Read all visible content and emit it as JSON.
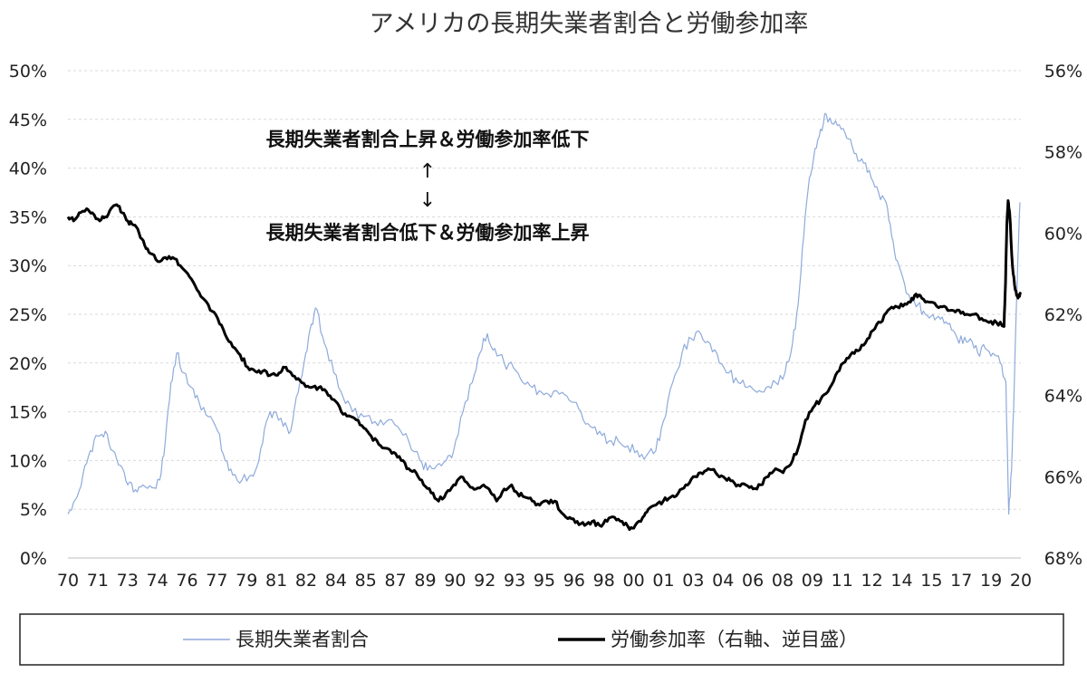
{
  "chart_data": {
    "type": "line",
    "title": "アメリカの長期失業者割合と労働参加率",
    "annotations": {
      "line1": "長期失業者割合上昇＆労働参加率低下",
      "arrow_up": "↑",
      "arrow_down": "↓",
      "line2": "長期失業者割合低下＆労働参加率上昇"
    },
    "x_tick_labels": [
      "70",
      "71",
      "73",
      "74",
      "76",
      "77",
      "79",
      "81",
      "82",
      "84",
      "85",
      "87",
      "89",
      "90",
      "92",
      "93",
      "95",
      "96",
      "98",
      "00",
      "01",
      "03",
      "04",
      "06",
      "08",
      "09",
      "11",
      "12",
      "14",
      "15",
      "17",
      "19",
      "20"
    ],
    "x_range": [
      1970,
      2020.9
    ],
    "left_axis": {
      "ticks": [
        "50%",
        "45%",
        "40%",
        "35%",
        "30%",
        "25%",
        "20%",
        "15%",
        "10%",
        "5%",
        "0%"
      ],
      "ylim": [
        0,
        50
      ]
    },
    "right_axis": {
      "ticks": [
        "56%",
        "58%",
        "60%",
        "62%",
        "64%",
        "66%",
        "68%"
      ],
      "ylim": [
        56,
        68
      ],
      "inverted": true
    },
    "grid": true,
    "legend_position": "bottom",
    "series": [
      {
        "name": "長期失業者割合",
        "axis": "left",
        "color": "#8eaadb",
        "points": [
          [
            1970.0,
            4.5
          ],
          [
            1970.4,
            6.0
          ],
          [
            1970.8,
            8.5
          ],
          [
            1971.2,
            11.0
          ],
          [
            1971.6,
            12.5
          ],
          [
            1972.0,
            13.0
          ],
          [
            1972.4,
            11.0
          ],
          [
            1972.8,
            9.5
          ],
          [
            1973.2,
            7.5
          ],
          [
            1973.6,
            7.0
          ],
          [
            1974.0,
            7.5
          ],
          [
            1974.5,
            7.2
          ],
          [
            1974.9,
            8.0
          ],
          [
            1975.2,
            12.0
          ],
          [
            1975.5,
            18.0
          ],
          [
            1975.8,
            21.0
          ],
          [
            1976.2,
            19.0
          ],
          [
            1976.6,
            17.5
          ],
          [
            1977.0,
            16.0
          ],
          [
            1977.5,
            14.5
          ],
          [
            1978.0,
            13.0
          ],
          [
            1978.4,
            10.0
          ],
          [
            1978.8,
            8.5
          ],
          [
            1979.3,
            8.0
          ],
          [
            1979.8,
            8.5
          ],
          [
            1980.2,
            10.0
          ],
          [
            1980.6,
            14.0
          ],
          [
            1981.0,
            15.0
          ],
          [
            1981.5,
            13.5
          ],
          [
            1981.9,
            13.0
          ],
          [
            1982.3,
            17.0
          ],
          [
            1982.7,
            21.0
          ],
          [
            1983.0,
            24.0
          ],
          [
            1983.3,
            25.5
          ],
          [
            1983.7,
            22.0
          ],
          [
            1984.2,
            19.0
          ],
          [
            1984.7,
            16.5
          ],
          [
            1985.2,
            15.0
          ],
          [
            1985.8,
            14.5
          ],
          [
            1986.4,
            14.0
          ],
          [
            1987.0,
            14.0
          ],
          [
            1987.6,
            13.5
          ],
          [
            1988.2,
            12.0
          ],
          [
            1988.8,
            10.0
          ],
          [
            1989.2,
            9.0
          ],
          [
            1989.7,
            9.5
          ],
          [
            1990.2,
            10.0
          ],
          [
            1990.6,
            11.0
          ],
          [
            1991.1,
            15.0
          ],
          [
            1991.6,
            18.0
          ],
          [
            1992.0,
            21.0
          ],
          [
            1992.4,
            23.0
          ],
          [
            1992.8,
            21.5
          ],
          [
            1993.3,
            20.0
          ],
          [
            1993.8,
            19.5
          ],
          [
            1994.3,
            18.0
          ],
          [
            1994.8,
            17.5
          ],
          [
            1995.3,
            17.0
          ],
          [
            1995.8,
            16.5
          ],
          [
            1996.4,
            17.0
          ],
          [
            1996.9,
            16.0
          ],
          [
            1997.4,
            15.0
          ],
          [
            1997.9,
            13.5
          ],
          [
            1998.4,
            13.0
          ],
          [
            1998.9,
            12.0
          ],
          [
            1999.4,
            12.0
          ],
          [
            1999.9,
            11.5
          ],
          [
            2000.4,
            11.0
          ],
          [
            2000.9,
            10.5
          ],
          [
            2001.4,
            11.0
          ],
          [
            2001.8,
            14.0
          ],
          [
            2002.3,
            18.0
          ],
          [
            2002.8,
            21.0
          ],
          [
            2003.3,
            22.5
          ],
          [
            2003.8,
            23.0
          ],
          [
            2004.3,
            22.0
          ],
          [
            2004.8,
            20.0
          ],
          [
            2005.3,
            19.0
          ],
          [
            2005.8,
            18.0
          ],
          [
            2006.3,
            17.5
          ],
          [
            2006.8,
            17.0
          ],
          [
            2007.3,
            17.5
          ],
          [
            2007.8,
            18.0
          ],
          [
            2008.3,
            19.0
          ],
          [
            2008.7,
            22.0
          ],
          [
            2009.0,
            26.0
          ],
          [
            2009.3,
            33.0
          ],
          [
            2009.6,
            39.0
          ],
          [
            2009.9,
            42.0
          ],
          [
            2010.2,
            44.0
          ],
          [
            2010.5,
            45.5
          ],
          [
            2010.9,
            44.5
          ],
          [
            2011.3,
            44.0
          ],
          [
            2011.7,
            43.0
          ],
          [
            2012.1,
            41.5
          ],
          [
            2012.5,
            40.5
          ],
          [
            2012.9,
            39.0
          ],
          [
            2013.3,
            37.5
          ],
          [
            2013.7,
            36.5
          ],
          [
            2014.0,
            33.0
          ],
          [
            2014.3,
            30.5
          ],
          [
            2014.7,
            28.0
          ],
          [
            2015.0,
            26.5
          ],
          [
            2015.4,
            26.0
          ],
          [
            2015.8,
            25.0
          ],
          [
            2016.2,
            25.0
          ],
          [
            2016.6,
            24.5
          ],
          [
            2017.0,
            24.0
          ],
          [
            2017.4,
            23.0
          ],
          [
            2017.8,
            22.0
          ],
          [
            2018.2,
            22.5
          ],
          [
            2018.6,
            21.0
          ],
          [
            2019.0,
            21.5
          ],
          [
            2019.4,
            21.0
          ],
          [
            2019.8,
            20.0
          ],
          [
            2020.1,
            18.0
          ],
          [
            2020.25,
            4.5
          ],
          [
            2020.4,
            9.0
          ],
          [
            2020.55,
            18.0
          ],
          [
            2020.7,
            28.0
          ],
          [
            2020.85,
            36.5
          ]
        ]
      },
      {
        "name": "労働参加率（右軸、逆目盛）",
        "axis": "right",
        "color": "#000000",
        "points": [
          [
            1970.0,
            59.6
          ],
          [
            1970.3,
            59.7
          ],
          [
            1970.6,
            59.5
          ],
          [
            1971.0,
            59.4
          ],
          [
            1971.3,
            59.5
          ],
          [
            1971.7,
            59.7
          ],
          [
            1972.0,
            59.6
          ],
          [
            1972.3,
            59.4
          ],
          [
            1972.6,
            59.3
          ],
          [
            1972.9,
            59.5
          ],
          [
            1973.2,
            59.7
          ],
          [
            1973.5,
            59.8
          ],
          [
            1973.8,
            60.0
          ],
          [
            1974.1,
            60.3
          ],
          [
            1974.4,
            60.5
          ],
          [
            1974.8,
            60.7
          ],
          [
            1975.2,
            60.6
          ],
          [
            1975.6,
            60.6
          ],
          [
            1976.0,
            60.8
          ],
          [
            1976.4,
            61.0
          ],
          [
            1976.8,
            61.3
          ],
          [
            1977.2,
            61.6
          ],
          [
            1977.6,
            61.9
          ],
          [
            1978.0,
            62.1
          ],
          [
            1978.4,
            62.5
          ],
          [
            1978.8,
            62.8
          ],
          [
            1979.2,
            63.0
          ],
          [
            1979.6,
            63.3
          ],
          [
            1980.0,
            63.4
          ],
          [
            1980.4,
            63.4
          ],
          [
            1980.8,
            63.5
          ],
          [
            1981.2,
            63.5
          ],
          [
            1981.5,
            63.3
          ],
          [
            1981.8,
            63.4
          ],
          [
            1982.2,
            63.6
          ],
          [
            1982.6,
            63.7
          ],
          [
            1983.0,
            63.8
          ],
          [
            1983.4,
            63.8
          ],
          [
            1983.8,
            63.9
          ],
          [
            1984.2,
            64.1
          ],
          [
            1984.6,
            64.4
          ],
          [
            1985.0,
            64.5
          ],
          [
            1985.4,
            64.6
          ],
          [
            1985.8,
            64.8
          ],
          [
            1986.2,
            65.0
          ],
          [
            1986.6,
            65.2
          ],
          [
            1987.0,
            65.3
          ],
          [
            1987.4,
            65.4
          ],
          [
            1987.8,
            65.6
          ],
          [
            1988.2,
            65.8
          ],
          [
            1988.6,
            65.9
          ],
          [
            1989.0,
            66.2
          ],
          [
            1989.4,
            66.4
          ],
          [
            1989.8,
            66.6
          ],
          [
            1990.2,
            66.4
          ],
          [
            1990.6,
            66.2
          ],
          [
            1991.0,
            66.0
          ],
          [
            1991.4,
            66.2
          ],
          [
            1991.8,
            66.3
          ],
          [
            1992.2,
            66.2
          ],
          [
            1992.6,
            66.4
          ],
          [
            1992.9,
            66.6
          ],
          [
            1993.3,
            66.3
          ],
          [
            1993.7,
            66.2
          ],
          [
            1994.0,
            66.4
          ],
          [
            1994.4,
            66.5
          ],
          [
            1994.8,
            66.6
          ],
          [
            1995.2,
            66.7
          ],
          [
            1995.6,
            66.6
          ],
          [
            1996.0,
            66.6
          ],
          [
            1996.4,
            66.9
          ],
          [
            1996.8,
            67.0
          ],
          [
            1997.2,
            67.1
          ],
          [
            1997.6,
            67.2
          ],
          [
            1998.0,
            67.1
          ],
          [
            1998.4,
            67.2
          ],
          [
            1998.8,
            67.1
          ],
          [
            1999.2,
            67.0
          ],
          [
            1999.6,
            67.1
          ],
          [
            2000.0,
            67.3
          ],
          [
            2000.3,
            67.2
          ],
          [
            2000.7,
            67.0
          ],
          [
            2001.0,
            66.8
          ],
          [
            2001.4,
            66.7
          ],
          [
            2001.8,
            66.6
          ],
          [
            2002.2,
            66.5
          ],
          [
            2002.6,
            66.4
          ],
          [
            2003.0,
            66.2
          ],
          [
            2003.4,
            66.0
          ],
          [
            2003.8,
            65.9
          ],
          [
            2004.2,
            65.8
          ],
          [
            2004.6,
            65.9
          ],
          [
            2005.0,
            66.0
          ],
          [
            2005.4,
            66.1
          ],
          [
            2005.8,
            66.2
          ],
          [
            2006.2,
            66.2
          ],
          [
            2006.6,
            66.3
          ],
          [
            2007.0,
            66.2
          ],
          [
            2007.4,
            66.0
          ],
          [
            2007.8,
            65.8
          ],
          [
            2008.2,
            65.9
          ],
          [
            2008.6,
            65.7
          ],
          [
            2009.0,
            65.3
          ],
          [
            2009.4,
            64.6
          ],
          [
            2009.8,
            64.3
          ],
          [
            2010.2,
            64.1
          ],
          [
            2010.6,
            63.9
          ],
          [
            2011.0,
            63.5
          ],
          [
            2011.4,
            63.2
          ],
          [
            2011.8,
            63.0
          ],
          [
            2012.2,
            62.9
          ],
          [
            2012.6,
            62.7
          ],
          [
            2013.0,
            62.4
          ],
          [
            2013.4,
            62.2
          ],
          [
            2013.8,
            61.9
          ],
          [
            2014.2,
            61.8
          ],
          [
            2014.6,
            61.8
          ],
          [
            2015.0,
            61.7
          ],
          [
            2015.3,
            61.5
          ],
          [
            2015.6,
            61.6
          ],
          [
            2016.0,
            61.7
          ],
          [
            2016.4,
            61.8
          ],
          [
            2016.8,
            61.8
          ],
          [
            2017.2,
            61.9
          ],
          [
            2017.6,
            61.9
          ],
          [
            2018.0,
            62.0
          ],
          [
            2018.4,
            62.0
          ],
          [
            2018.8,
            62.1
          ],
          [
            2019.2,
            62.2
          ],
          [
            2019.6,
            62.2
          ],
          [
            2020.0,
            62.3
          ],
          [
            2020.08,
            61.2
          ],
          [
            2020.15,
            59.8
          ],
          [
            2020.22,
            59.2
          ],
          [
            2020.3,
            59.5
          ],
          [
            2020.45,
            60.8
          ],
          [
            2020.6,
            61.4
          ],
          [
            2020.75,
            61.6
          ],
          [
            2020.9,
            61.5
          ]
        ]
      }
    ]
  }
}
